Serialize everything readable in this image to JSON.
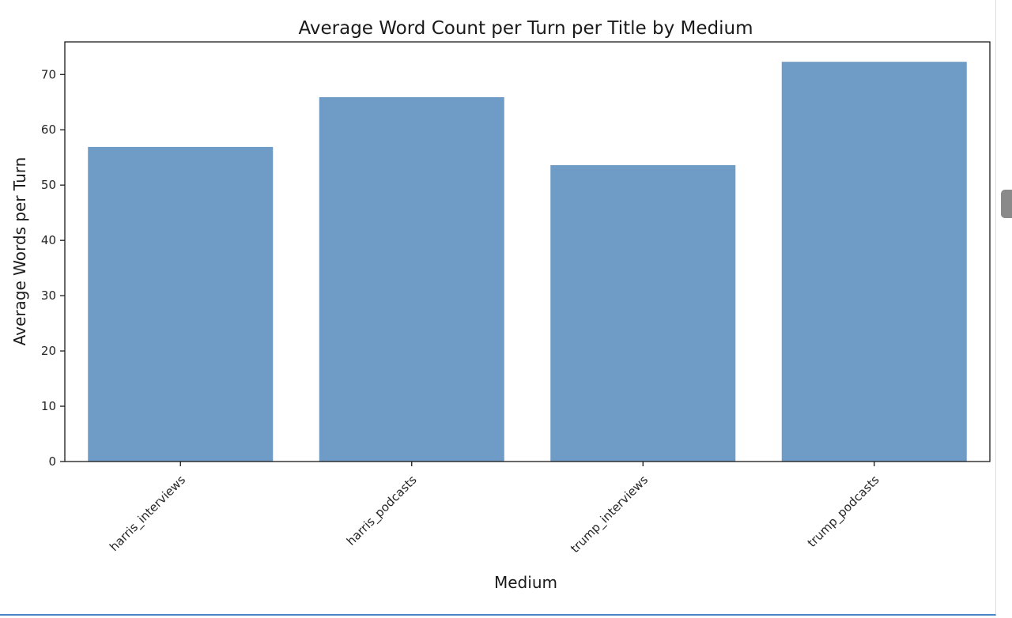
{
  "chart_data": {
    "type": "bar",
    "title": "Average Word Count per Turn per Title by Medium",
    "xlabel": "Medium",
    "ylabel": "Average Words per Turn",
    "categories": [
      "harris_interviews",
      "harris_podcasts",
      "trump_interviews",
      "trump_podcasts"
    ],
    "values": [
      56.9,
      65.9,
      53.6,
      72.3
    ],
    "ylim": [
      0,
      75.9
    ],
    "yticks": [
      0,
      10,
      20,
      30,
      40,
      50,
      60,
      70
    ],
    "bar_color": "#6f9cc6",
    "grid": false,
    "legend": "none"
  }
}
